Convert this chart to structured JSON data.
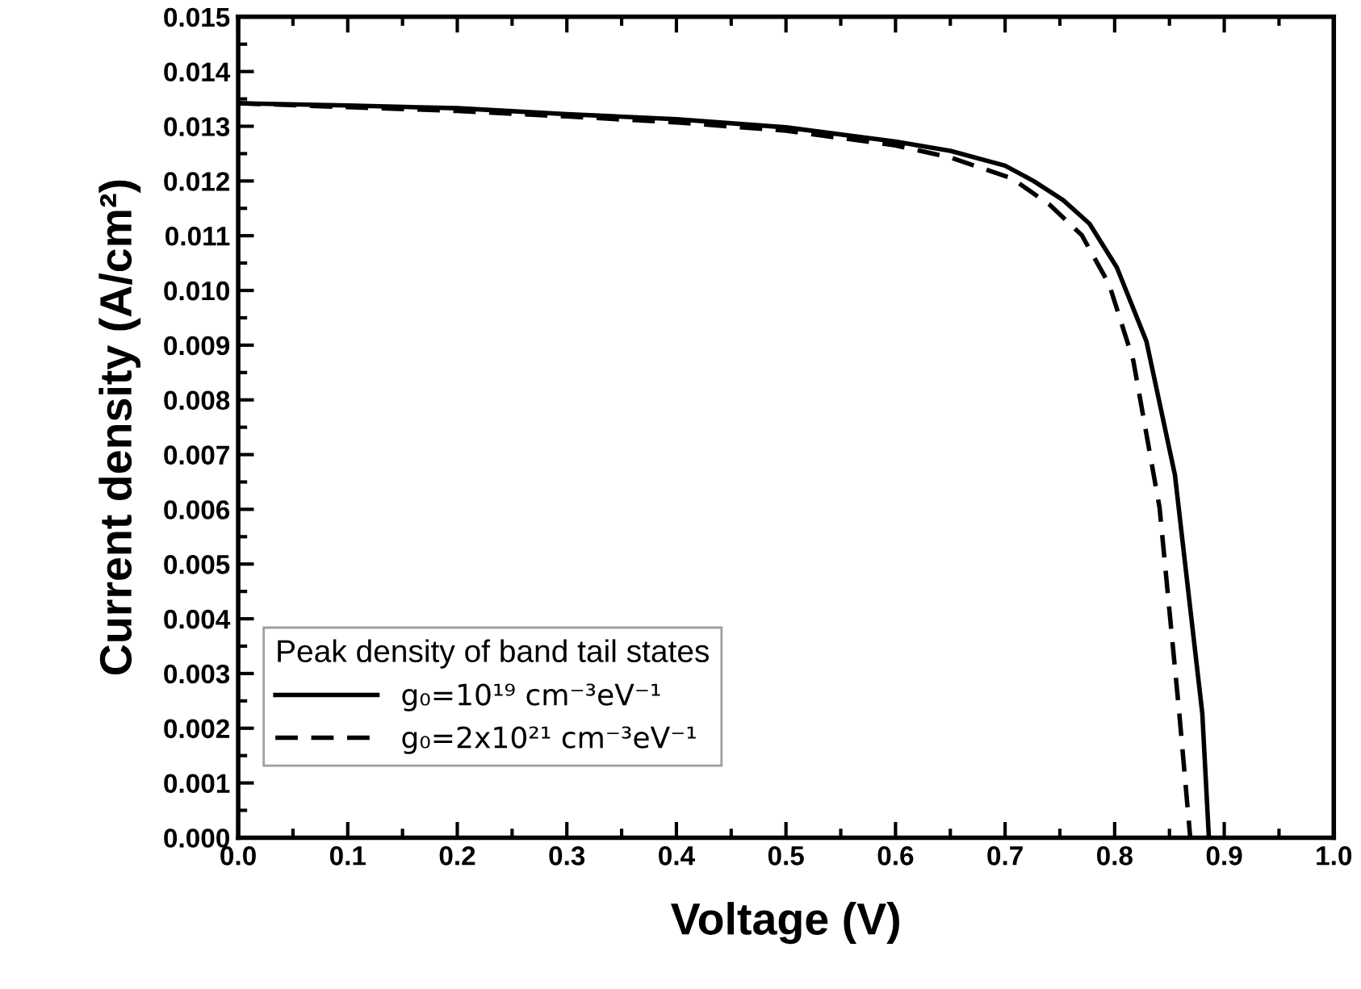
{
  "chart_data": {
    "type": "line",
    "xlabel": "Voltage (V)",
    "ylabel": "Current density (A/cm²)",
    "legend_title": "Peak density of band tail states",
    "legend": "bottom left",
    "grid": false,
    "marker": "none",
    "xlim": [
      0.0,
      1.0
    ],
    "ylim": [
      0.0,
      0.015
    ],
    "xticks": [
      {
        "value": 0.0,
        "label": "0.0"
      },
      0.1,
      0.2,
      0.3,
      0.4,
      0.5,
      0.6,
      0.7,
      0.8,
      0.9,
      {
        "value": 1.0,
        "label": "1.0"
      }
    ],
    "yticks": [
      {
        "value": 0.0,
        "label": "0.000"
      },
      0.001,
      0.002,
      0.003,
      0.004,
      0.005,
      0.006,
      0.007,
      0.008,
      0.009,
      {
        "value": 0.01,
        "label": "0.010"
      },
      0.011,
      0.012,
      0.013,
      0.014,
      0.015
    ],
    "series": [
      {
        "name": "g₀=10¹⁹ cm⁻³eV⁻¹",
        "color": "#000000",
        "line_style": "solid",
        "x": [
          0.0,
          0.1,
          0.2,
          0.3,
          0.4,
          0.5,
          0.6,
          0.65,
          0.7,
          0.726,
          0.753,
          0.777,
          0.802,
          0.829,
          0.855,
          0.88,
          0.886
        ],
        "values": [
          0.01342,
          0.01338,
          0.01333,
          0.01322,
          0.01313,
          0.01298,
          0.01272,
          0.01255,
          0.01228,
          0.012,
          0.01165,
          0.01122,
          0.01042,
          0.00907,
          0.00663,
          0.00227,
          0.0
        ]
      },
      {
        "name": "g₀=2x10²¹ cm⁻³eV⁻¹",
        "color": "#000000",
        "line_style": "dashed",
        "x": [
          0.0,
          0.1,
          0.2,
          0.3,
          0.4,
          0.5,
          0.6,
          0.65,
          0.706,
          0.741,
          0.77,
          0.795,
          0.817,
          0.841,
          0.859,
          0.869
        ],
        "values": [
          0.01342,
          0.01335,
          0.01328,
          0.01318,
          0.01307,
          0.01292,
          0.01265,
          0.01243,
          0.01205,
          0.01156,
          0.01101,
          0.01011,
          0.00872,
          0.00603,
          0.00227,
          0.0
        ]
      }
    ]
  }
}
